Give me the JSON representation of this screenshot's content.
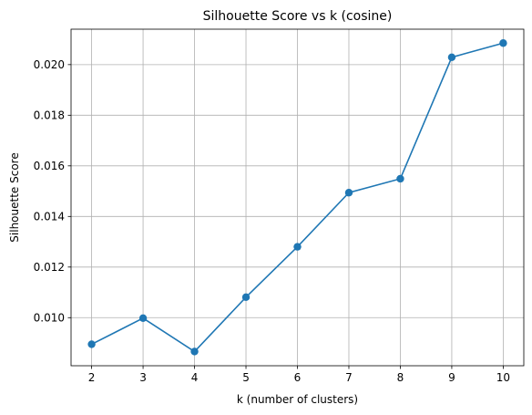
{
  "chart_data": {
    "type": "line",
    "title": "Silhouette Score vs k (cosine)",
    "xlabel": "k (number of clusters)",
    "ylabel": "Silhouette Score",
    "x": [
      2,
      3,
      4,
      5,
      6,
      7,
      8,
      9,
      10
    ],
    "series": [
      {
        "values": [
          0.00895,
          0.00998,
          0.00866,
          0.01081,
          0.0128,
          0.01494,
          0.01549,
          0.02029,
          0.02085
        ]
      }
    ],
    "xlim": [
      1.6,
      10.4
    ],
    "ylim": [
      0.0081,
      0.0214
    ],
    "x_ticks": [
      {
        "value": 2,
        "label": "2"
      },
      {
        "value": 3,
        "label": "3"
      },
      {
        "value": 4,
        "label": "4"
      },
      {
        "value": 5,
        "label": "5"
      },
      {
        "value": 6,
        "label": "6"
      },
      {
        "value": 7,
        "label": "7"
      },
      {
        "value": 8,
        "label": "8"
      },
      {
        "value": 9,
        "label": "9"
      },
      {
        "value": 10,
        "label": "10"
      }
    ],
    "y_ticks": [
      {
        "value": 0.01,
        "label": "0.010"
      },
      {
        "value": 0.012,
        "label": "0.012"
      },
      {
        "value": 0.014,
        "label": "0.014"
      },
      {
        "value": 0.016,
        "label": "0.016"
      },
      {
        "value": 0.018,
        "label": "0.018"
      },
      {
        "value": 0.02,
        "label": "0.020"
      }
    ],
    "grid": true,
    "marker": "circle",
    "colors": {
      "line": "#1f77b4",
      "grid": "#b0b0b0",
      "axes": "#000000"
    }
  }
}
